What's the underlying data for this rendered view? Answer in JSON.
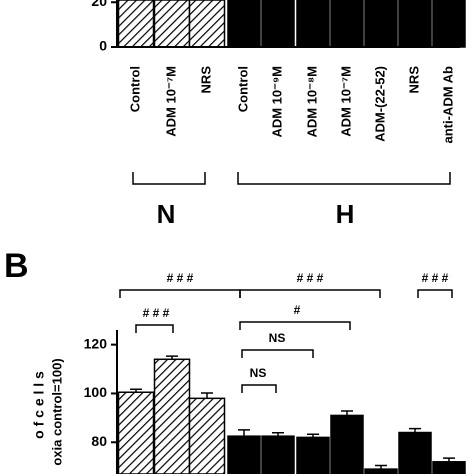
{
  "chart_data": [
    {
      "type": "bar",
      "categories": [
        "Control",
        "ADM 10⁻⁷M",
        "NRS",
        "Control",
        "ADM 10⁻⁹M",
        "ADM 10⁻⁸M",
        "ADM 10⁻⁷M",
        "ADM-(22-52)",
        "NRS",
        "anti-ADM Ab"
      ],
      "values": [
        21,
        21,
        21,
        21,
        21,
        21,
        21,
        21,
        21,
        21
      ],
      "hatched": [
        true,
        true,
        true,
        false,
        false,
        false,
        false,
        false,
        false,
        false
      ],
      "color": "#000000",
      "ylim": [
        0,
        21
      ],
      "yticks": [
        0,
        20
      ],
      "groups": [
        "N",
        "H"
      ]
    },
    {
      "type": "bar",
      "title": "B",
      "ylabel": [
        "o f   c e l l s",
        "oxia control=100)"
      ],
      "values": [
        100.5,
        114,
        98,
        82.5,
        82.5,
        82,
        91,
        69,
        84,
        72
      ],
      "errors": [
        1.2,
        1.3,
        2.2,
        2.6,
        1.4,
        1.3,
        1.8,
        1.5,
        1.6,
        1.5
      ],
      "hatched": [
        true,
        true,
        true,
        false,
        false,
        false,
        false,
        false,
        false,
        false
      ],
      "color": "#000000",
      "ylim": [
        67,
        126
      ],
      "yticks": [
        80,
        100,
        120
      ],
      "annotations": [
        "# # #",
        "# # #",
        "# # #",
        "# # #",
        "#",
        "NS",
        "NS"
      ]
    }
  ]
}
